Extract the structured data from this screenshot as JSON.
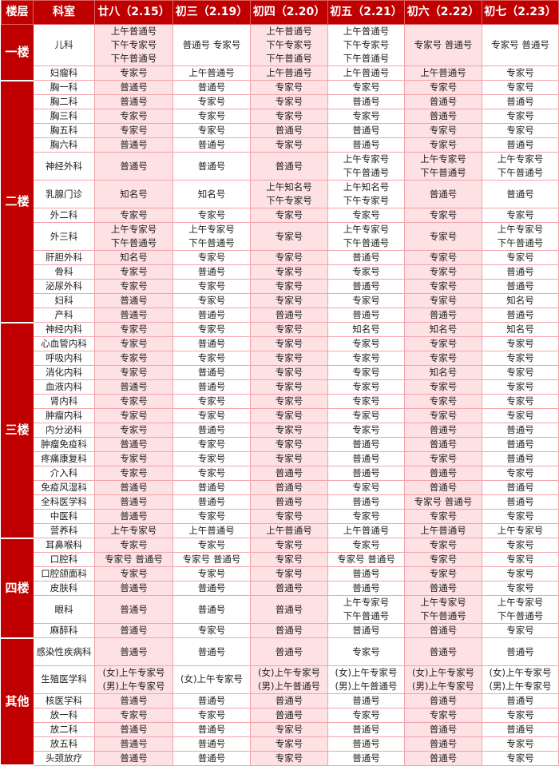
{
  "header": [
    "楼层",
    "科室",
    "廿八（2.15）",
    "初三（2.19）",
    "初四（2.20）",
    "初五（2.21）",
    "初六（2.22）",
    "初七（2.23）"
  ],
  "colors": {
    "header_bg": "#c00000",
    "pink_column": "#fde1e3",
    "border": "#f3a3ab"
  },
  "floors": [
    {
      "name": "一楼",
      "departments": [
        {
          "name": "儿科",
          "lines": 3,
          "cells": [
            "上午普通号\n下午专家号\n下午普通号",
            "普通号 专家号",
            "上午普通号\n下午专家号\n下午普通号",
            "上午普通号\n下午专家号\n下午普通号",
            "专家号 普通号",
            "专家号 普通号"
          ]
        },
        {
          "name": "妇瘤科",
          "lines": 1,
          "cells": [
            "专家号",
            "上午普通号",
            "上午普通号",
            "上午普通号",
            "上午普通号",
            "专家号"
          ]
        }
      ]
    },
    {
      "name": "二楼",
      "departments": [
        {
          "name": "胸一科",
          "lines": 1,
          "cells": [
            "普通号",
            "普通号",
            "专家号",
            "专家号",
            "专家号",
            "专家号"
          ]
        },
        {
          "name": "胸二科",
          "lines": 1,
          "cells": [
            "普通号",
            "专家号",
            "专家号",
            "普通号",
            "普通号",
            "普通号"
          ]
        },
        {
          "name": "胸三科",
          "lines": 1,
          "cells": [
            "专家号",
            "专家号",
            "专家号",
            "专家号",
            "普通号",
            "专家号"
          ]
        },
        {
          "name": "胸五科",
          "lines": 1,
          "cells": [
            "专家号",
            "专家号",
            "普通号",
            "普通号",
            "专家号",
            "专家号"
          ]
        },
        {
          "name": "胸六科",
          "lines": 1,
          "cells": [
            "普通号",
            "普通号",
            "专家号",
            "普通号",
            "专家号",
            "普通号"
          ]
        },
        {
          "name": "神经外科",
          "lines": 2,
          "cells": [
            "普通号",
            "普通号",
            "普通号",
            "上午专家号\n下午普通号",
            "上午专家号\n下午普通号",
            "上午专家号\n下午普通号"
          ]
        },
        {
          "name": "乳腺门诊",
          "lines": 2,
          "cells": [
            "知名号",
            "知名号",
            "上午知名号\n下午专家号",
            "上午知名号\n下午专家号",
            "普通号",
            "普通号"
          ]
        },
        {
          "name": "外二科",
          "lines": 1,
          "cells": [
            "专家号",
            "专家号",
            "专家号",
            "专家号",
            "专家号",
            "专家号"
          ]
        },
        {
          "name": "外三科",
          "lines": 2,
          "cells": [
            "上午专家号\n下午普通号",
            "上午专家号\n下午普通号",
            "专家号",
            "上午专家号\n下午普通号",
            "专家号",
            "上午专家号\n下午普通号"
          ]
        },
        {
          "name": "肝胆外科",
          "lines": 1,
          "cells": [
            "知名号",
            "专家号",
            "专家号",
            "普通号",
            "专家号",
            "专家号"
          ]
        },
        {
          "name": "骨科",
          "lines": 1,
          "cells": [
            "专家号",
            "普通号",
            "专家号",
            "专家号",
            "专家号",
            "普通号"
          ]
        },
        {
          "name": "泌尿外科",
          "lines": 1,
          "cells": [
            "专家号",
            "专家号",
            "专家号",
            "普通号",
            "专家号",
            "普通号"
          ]
        },
        {
          "name": "妇科",
          "lines": 1,
          "cells": [
            "普通号",
            "专家号",
            "专家号",
            "专家号",
            "专家号",
            "知名号"
          ]
        },
        {
          "name": "产科",
          "lines": 1,
          "cells": [
            "普通号",
            "普通号",
            "普通号",
            "普通号",
            "普通号",
            "普通号"
          ]
        }
      ]
    },
    {
      "name": "三楼",
      "departments": [
        {
          "name": "神经内科",
          "lines": 1,
          "cells": [
            "专家号",
            "专家号",
            "专家号",
            "知名号",
            "知名号",
            "知名号"
          ]
        },
        {
          "name": "心血管内科",
          "lines": 1,
          "cells": [
            "专家号",
            "普通号",
            "专家号",
            "专家号",
            "专家号",
            "专家号"
          ]
        },
        {
          "name": "呼吸内科",
          "lines": 1,
          "cells": [
            "专家号",
            "专家号",
            "专家号",
            "专家号",
            "专家号",
            "专家号"
          ]
        },
        {
          "name": "消化内科",
          "lines": 1,
          "cells": [
            "专家号",
            "普通号",
            "专家号",
            "专家号",
            "知名号",
            "专家号"
          ]
        },
        {
          "name": "血液内科",
          "lines": 1,
          "cells": [
            "普通号",
            "普通号",
            "专家号",
            "专家号",
            "专家号",
            "专家号"
          ]
        },
        {
          "name": "肾内科",
          "lines": 1,
          "cells": [
            "专家号",
            "专家号",
            "专家号",
            "专家号",
            "专家号",
            "专家号"
          ]
        },
        {
          "name": "肿瘤内科",
          "lines": 1,
          "cells": [
            "专家号",
            "专家号",
            "专家号",
            "专家号",
            "专家号",
            "专家号"
          ]
        },
        {
          "name": "内分泌科",
          "lines": 1,
          "cells": [
            "专家号",
            "普通号",
            "专家号",
            "专家号",
            "普通号",
            "普通号"
          ]
        },
        {
          "name": "肿瘤免疫科",
          "lines": 1,
          "cells": [
            "普通号",
            "专家号",
            "专家号",
            "普通号",
            "普通号",
            "普通号"
          ]
        },
        {
          "name": "疼痛康复科",
          "lines": 1,
          "cells": [
            "专家号",
            "专家号",
            "专家号",
            "普通号",
            "专家号",
            "普通号"
          ]
        },
        {
          "name": "介入科",
          "lines": 1,
          "cells": [
            "专家号",
            "专家号",
            "普通号",
            "普通号",
            "普通号",
            "专家号"
          ]
        },
        {
          "name": "免疫风湿科",
          "lines": 1,
          "cells": [
            "普通号",
            "普通号",
            "普通号",
            "专家号",
            "普通号",
            "普通号"
          ]
        },
        {
          "name": "全科医学科",
          "lines": 1,
          "cells": [
            "普通号",
            "普通号",
            "普通号",
            "普通号",
            "专家号 普通号",
            "普通号"
          ]
        },
        {
          "name": "中医科",
          "lines": 1,
          "cells": [
            "普通号",
            "专家号",
            "专家号",
            "专家号",
            "专家号",
            "专家号"
          ]
        },
        {
          "name": "营养科",
          "lines": 1,
          "cells": [
            "上午专家号",
            "上午普通号",
            "上午普通号",
            "上午普通号",
            "上午普通号",
            "上午专家号"
          ]
        }
      ]
    },
    {
      "name": "四楼",
      "departments": [
        {
          "name": "耳鼻喉科",
          "lines": 1,
          "cells": [
            "专家号",
            "专家号",
            "专家号",
            "专家号",
            "专家号",
            "专家号"
          ]
        },
        {
          "name": "口腔科",
          "lines": 1,
          "cells": [
            "专家号 普通号",
            "专家号 普通号",
            "专家号",
            "专家号 普通号",
            "专家号",
            "专家号"
          ]
        },
        {
          "name": "口腔颌面科",
          "lines": 1,
          "cells": [
            "专家号",
            "专家号",
            "专家号",
            "普通号",
            "专家号",
            "专家号"
          ]
        },
        {
          "name": "皮肤科",
          "lines": 1,
          "cells": [
            "普通号",
            "普通号",
            "普通号",
            "普通号",
            "普通号",
            "专家号"
          ]
        },
        {
          "name": "眼科",
          "lines": 2,
          "cells": [
            "普通号",
            "普通号",
            "普通号",
            "上午专家号\n下午普通号",
            "上午专家号\n下午普通号",
            "上午专家号\n下午普通号"
          ]
        },
        {
          "name": "麻醉科",
          "lines": 1,
          "cells": [
            "普通号",
            "专家号",
            "普通号",
            "普通号",
            "普通号",
            "专家号"
          ]
        }
      ]
    },
    {
      "name": "其他",
      "departments": [
        {
          "name": "感染性疾病科",
          "lines": 2,
          "cells": [
            "普通号",
            "普通号",
            "普通号",
            "专家号",
            "普通号",
            "普通号"
          ]
        },
        {
          "name": "生殖医学科",
          "lines": 2,
          "cells": [
            "(女)上午专家号\n(男)上午专家号",
            "(女)上午专家号",
            "(女)上午专家号\n(男)上午普通号",
            "(女)上午专家号\n(男)上午普通号",
            "(女)上午专家号\n(男)上午专家号",
            "(女)上午专家号\n(男)上午专家号"
          ]
        },
        {
          "name": "核医学科",
          "lines": 1,
          "cells": [
            "普通号",
            "普通号",
            "普通号",
            "普通号",
            "普通号",
            "普通号"
          ]
        },
        {
          "name": "放一科",
          "lines": 1,
          "cells": [
            "专家号",
            "专家号",
            "普通号",
            "专家号",
            "专家号",
            "专家号"
          ]
        },
        {
          "name": "放二科",
          "lines": 1,
          "cells": [
            "普通号",
            "普通号",
            "专家号",
            "普通号",
            "普通号",
            "普通号"
          ]
        },
        {
          "name": "放五科",
          "lines": 1,
          "cells": [
            "普通号",
            "普通号",
            "专家号",
            "普通号",
            "普通号",
            "专家号"
          ]
        },
        {
          "name": "头颈放疗",
          "lines": 1,
          "cells": [
            "普通号",
            "普通号",
            "专家号",
            "普通号",
            "普通号",
            "专家号"
          ]
        }
      ]
    }
  ]
}
